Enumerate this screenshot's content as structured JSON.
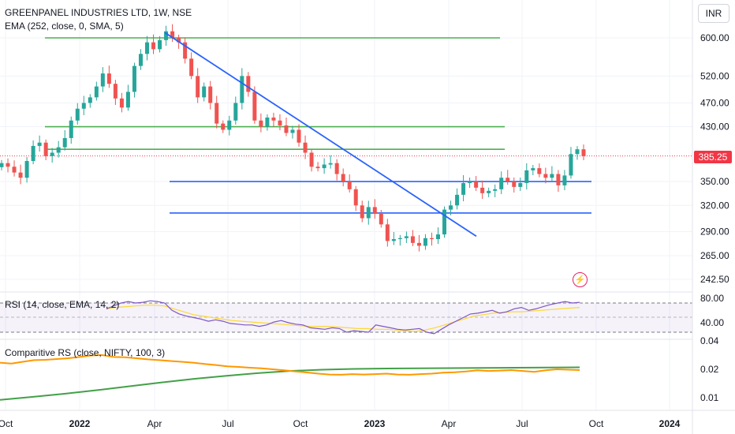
{
  "header": {
    "title": "GREENPANEL INDUSTRIES LTD, 1W, NSE",
    "ema_label": "EMA (252, close, 0, SMA, 5)",
    "currency": "INR"
  },
  "colors": {
    "up": "#26a69a",
    "down": "#ef5350",
    "green_level": "#4caf50",
    "blue_level": "#2962ff",
    "rsi_line": "#7e57c2",
    "rsi_ma": "#fdd835",
    "crs_line": "#ff9800",
    "crs_ma": "#43a047",
    "last_price": "#f23645"
  },
  "alert_icon": "lightning-icon",
  "chart_data": [
    {
      "type": "candlestick",
      "title": "GREENPANEL INDUSTRIES LTD, 1W, NSE",
      "price_axis": {
        "ticks": [
          "600.00",
          "520.00",
          "470.00",
          "430.00",
          "350.00",
          "320.00",
          "290.00",
          "265.00",
          "242.50"
        ],
        "scale": "log"
      },
      "last_price": "385.25",
      "x_labels": [
        {
          "label": "Oct",
          "bold": false
        },
        {
          "label": "2022",
          "bold": true
        },
        {
          "label": "Apr",
          "bold": false
        },
        {
          "label": "Jul",
          "bold": false
        },
        {
          "label": "Oct",
          "bold": false
        },
        {
          "label": "2023",
          "bold": true
        },
        {
          "label": "Apr",
          "bold": false
        },
        {
          "label": "Jul",
          "bold": false
        },
        {
          "label": "Oct",
          "bold": false
        },
        {
          "label": "2024",
          "bold": true
        }
      ],
      "close_path": [
        375,
        370,
        362,
        355,
        378,
        400,
        405,
        385,
        390,
        398,
        412,
        440,
        460,
        470,
        480,
        500,
        525,
        505,
        478,
        462,
        490,
        540,
        565,
        590,
        575,
        595,
        615,
        600,
        590,
        555,
        520,
        480,
        500,
        470,
        435,
        425,
        440,
        470,
        520,
        490,
        440,
        430,
        445,
        440,
        432,
        420,
        425,
        405,
        390,
        370,
        368,
        373,
        375,
        360,
        350,
        340,
        320,
        305,
        318,
        310,
        298,
        280,
        282,
        283,
        285,
        278,
        275,
        283,
        282,
        287,
        315,
        320,
        333,
        348,
        350,
        342,
        335,
        338,
        340,
        355,
        350,
        343,
        348,
        365,
        368,
        360,
        355,
        360,
        345,
        358,
        388,
        395,
        385
      ],
      "horizontal_levels": [
        {
          "color": "green",
          "price": 600
        },
        {
          "color": "green",
          "price": 430
        },
        {
          "color": "green",
          "price": 395
        },
        {
          "color": "blue",
          "price": 350
        },
        {
          "color": "blue",
          "price": 311
        }
      ],
      "trendline": {
        "from_price": 612,
        "to_price": 285
      }
    },
    {
      "type": "line",
      "title": "RSI (14, close, EMA, 14, 2)",
      "ticks": [
        "80.00",
        "40.00"
      ],
      "band": [
        70,
        30
      ],
      "rsi": [
        62,
        66,
        70,
        72,
        70,
        71,
        73,
        72,
        70,
        60,
        55,
        52,
        50,
        48,
        45,
        47,
        45,
        42,
        41,
        40,
        40,
        38,
        40,
        44,
        46,
        43,
        41,
        40,
        36,
        35,
        34,
        36,
        35,
        30,
        32,
        31,
        30,
        40,
        38,
        36,
        34,
        33,
        34,
        35,
        30,
        28,
        34,
        40,
        45,
        50,
        55,
        56,
        58,
        60,
        56,
        58,
        62,
        64,
        60,
        62,
        65,
        68,
        70,
        72,
        70,
        71
      ],
      "rsi_ma": [
        62,
        64,
        65,
        66,
        67,
        67,
        66,
        62,
        58,
        54,
        52,
        50,
        48,
        46,
        45,
        44,
        43,
        42,
        41,
        40,
        39,
        38,
        38,
        38,
        37,
        36,
        35,
        35,
        34,
        34,
        33,
        32,
        31,
        33,
        36,
        40,
        44,
        48,
        52,
        54,
        56,
        57,
        58,
        58,
        59,
        60,
        61,
        62,
        63,
        64
      ]
    },
    {
      "type": "line",
      "title": "Comparitive RS (close, NIFTY, 100, 3)",
      "ticks": [
        "0.04",
        "0.02",
        "0.01"
      ],
      "scale": "log",
      "crs": [
        0.0235,
        0.023,
        0.024,
        0.025,
        0.0252,
        0.0257,
        0.0262,
        0.027,
        0.028,
        0.0283,
        0.027,
        0.0268,
        0.0262,
        0.0255,
        0.025,
        0.0245,
        0.024,
        0.0235,
        0.0228,
        0.0222,
        0.0215,
        0.0212,
        0.0208,
        0.0205,
        0.02,
        0.0195,
        0.019,
        0.0185,
        0.018,
        0.0176,
        0.0175,
        0.0178,
        0.0176,
        0.0178,
        0.018,
        0.0176,
        0.0175,
        0.0178,
        0.018,
        0.0184,
        0.0186,
        0.019,
        0.0195,
        0.0192,
        0.0194,
        0.0196,
        0.0192,
        0.0188,
        0.0195,
        0.02,
        0.0198,
        0.0196
      ],
      "crs_ma": [
        0.0095,
        0.0102,
        0.011,
        0.012,
        0.0132,
        0.0145,
        0.0158,
        0.017,
        0.0182,
        0.0192,
        0.0198,
        0.0202,
        0.0204,
        0.0205,
        0.0206,
        0.0207,
        0.0208,
        0.0209,
        0.021
      ]
    }
  ]
}
